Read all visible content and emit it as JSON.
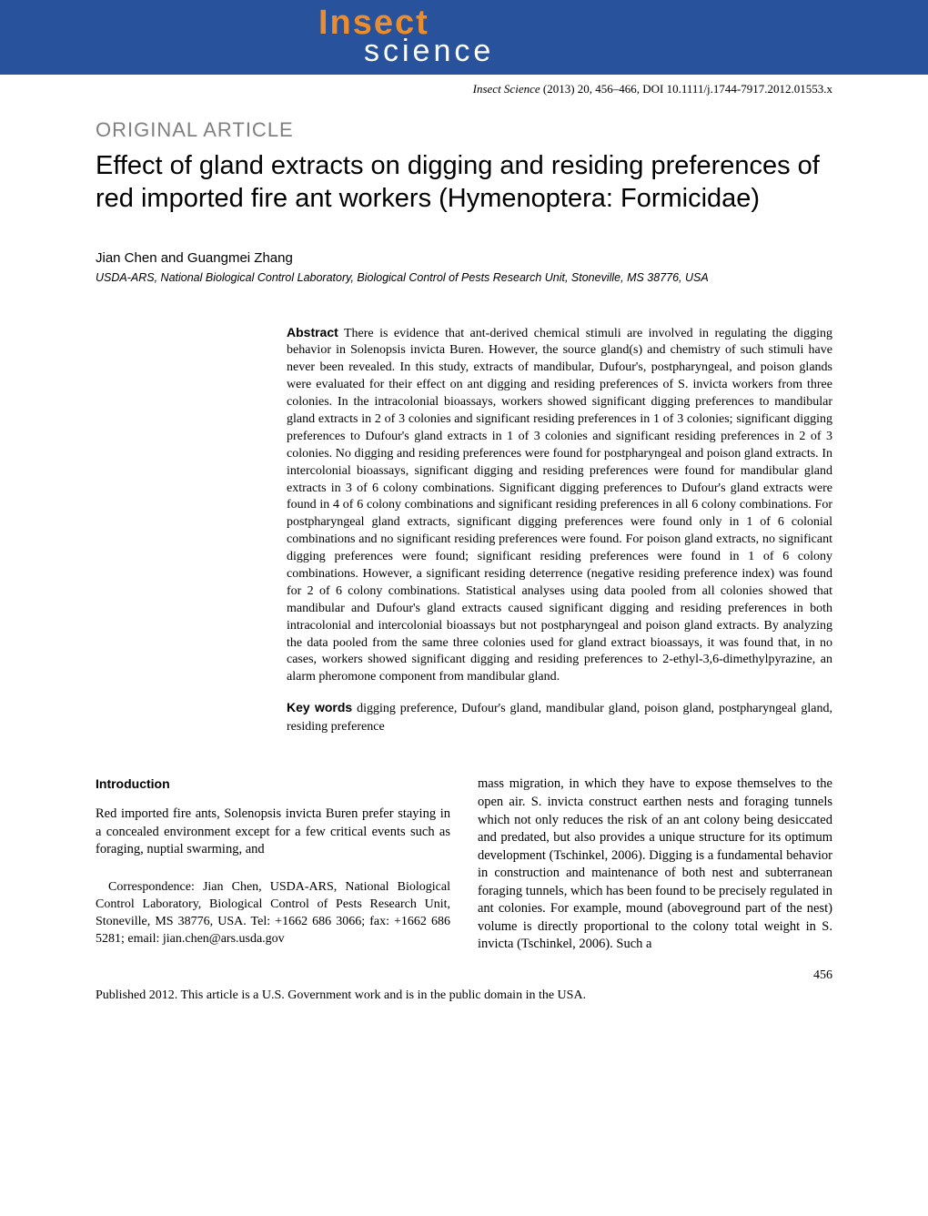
{
  "logo": {
    "line1": "Insect",
    "line2": "science"
  },
  "doi": {
    "journal": "Insect Science",
    "citation": " (2013) 20, 456–466, DOI 10.1111/j.1744-7917.2012.01553.x"
  },
  "article_type": "ORIGINAL ARTICLE",
  "title": "Effect of gland extracts on digging and residing preferences of red imported fire ant workers (Hymenoptera: Formicidae)",
  "authors": "Jian Chen and Guangmei Zhang",
  "affiliation": "USDA-ARS, National Biological Control Laboratory, Biological Control of Pests Research Unit, Stoneville, MS 38776, USA",
  "abstract": {
    "label": "Abstract",
    "text": "  There is evidence that ant-derived chemical stimuli are involved in regulating the digging behavior in Solenopsis invicta Buren. However, the source gland(s) and chemistry of such stimuli have never been revealed. In this study, extracts of mandibular, Dufour's, postpharyngeal, and poison glands were evaluated for their effect on ant digging and residing preferences of S. invicta workers from three colonies. In the intracolonial bioassays, workers showed significant digging preferences to mandibular gland extracts in 2 of 3 colonies and significant residing preferences in 1 of 3 colonies; significant digging preferences to Dufour's gland extracts in 1 of 3 colonies and significant residing preferences in 2 of 3 colonies. No digging and residing preferences were found for postpharyngeal and poison gland extracts. In intercolonial bioassays, significant digging and residing preferences were found for mandibular gland extracts in 3 of 6 colony combinations. Significant digging preferences to Dufour's gland extracts were found in 4 of 6 colony combinations and significant residing preferences in all 6 colony combinations. For postpharyngeal gland extracts, significant digging preferences were found only in 1 of 6 colonial combinations and no significant residing preferences were found. For poison gland extracts, no significant digging preferences were found; significant residing preferences were found in 1 of 6 colony combinations. However, a significant residing deterrence (negative residing preference index) was found for 2 of 6 colony combinations. Statistical analyses using data pooled from all colonies showed that mandibular and Dufour's gland extracts caused significant digging and residing preferences in both intracolonial and intercolonial bioassays but not postpharyngeal and poison gland extracts. By analyzing the data pooled from the same three colonies used for gland extract bioassays, it was found that, in no cases, workers showed significant digging and residing preferences to 2-ethyl-3,6-dimethylpyrazine, an alarm pheromone component from mandibular gland."
  },
  "keywords": {
    "label": "Key words",
    "text": "  digging preference, Dufour's gland, mandibular gland, poison gland, postpharyngeal gland, residing preference"
  },
  "introduction": {
    "heading": "Introduction",
    "para1": "Red imported fire ants, Solenopsis invicta Buren prefer staying in a concealed environment except for a few critical events such as foraging, nuptial swarming, and",
    "correspondence": "Correspondence: Jian Chen, USDA-ARS, National Biological Control Laboratory, Biological Control of Pests Research Unit, Stoneville, MS 38776, USA. Tel: +1662 686 3066; fax: +1662 686 5281; email: jian.chen@ars.usda.gov",
    "para2": "mass migration, in which they have to expose themselves to the open air. S. invicta construct earthen nests and foraging tunnels which not only reduces the risk of an ant colony being desiccated and predated, but also provides a unique structure for its optimum development (Tschinkel, 2006). Digging is a fundamental behavior in construction and maintenance of both nest and subterranean foraging tunnels, which has been found to be precisely regulated in ant colonies. For example, mound (aboveground part of the nest) volume is directly proportional to the colony total weight in S. invicta (Tschinkel, 2006). Such a"
  },
  "page_number": "456",
  "copyright": "Published 2012. This article is a U.S. Government work and is in the public domain in the USA."
}
